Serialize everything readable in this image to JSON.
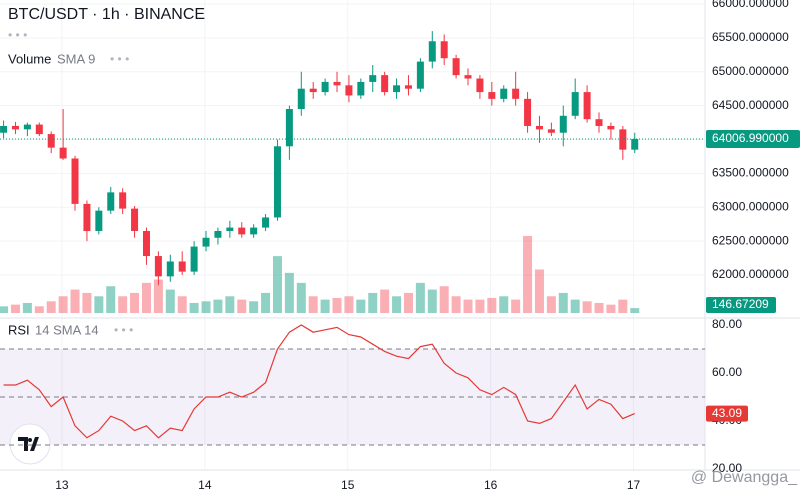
{
  "chart_data": {
    "type": "candlestick",
    "title": "BTC/USDT · 1h · BINANCE",
    "up_color": "#089981",
    "down_color": "#f23645",
    "xlim": [
      -0.3,
      58.9
    ],
    "xticks": [
      {
        "value": 4.9,
        "label": "13"
      },
      {
        "value": 16.9,
        "label": "14"
      },
      {
        "value": 28.9,
        "label": "15"
      },
      {
        "value": 40.9,
        "label": "16"
      },
      {
        "value": 52.9,
        "label": "17"
      }
    ],
    "ylim": [
      61410,
      66059
    ],
    "yticks": [
      {
        "value": 66000,
        "label": "66000.000000"
      },
      {
        "value": 65500,
        "label": "65500.000000"
      },
      {
        "value": 65000,
        "label": "65000.000000"
      },
      {
        "value": 64500,
        "label": "64500.000000"
      },
      {
        "value": 64000,
        "label": "64000.000000"
      },
      {
        "value": 63500,
        "label": "63500.000000"
      },
      {
        "value": 63000,
        "label": "63000.000000"
      },
      {
        "value": 62500,
        "label": "62500.000000"
      },
      {
        "value": 62000,
        "label": "62000.000000"
      }
    ],
    "grid": true,
    "last_price": {
      "value": 64006.99,
      "label": "64006.990000"
    },
    "ohlc": [
      [
        64100,
        64280,
        64020,
        64200
      ],
      [
        64200,
        64260,
        64080,
        64150
      ],
      [
        64150,
        64250,
        64050,
        64220
      ],
      [
        64220,
        64250,
        64050,
        64080
      ],
      [
        64080,
        64120,
        63800,
        63880
      ],
      [
        63880,
        64450,
        63700,
        63720
      ],
      [
        63720,
        63760,
        62950,
        63050
      ],
      [
        63050,
        63100,
        62500,
        62650
      ],
      [
        62650,
        63000,
        62600,
        62950
      ],
      [
        62950,
        63300,
        62900,
        63220
      ],
      [
        63220,
        63280,
        62900,
        62980
      ],
      [
        62980,
        63020,
        62550,
        62650
      ],
      [
        62650,
        62700,
        62150,
        62280
      ],
      [
        62280,
        62350,
        61850,
        61980
      ],
      [
        61980,
        62300,
        61900,
        62200
      ],
      [
        62200,
        62350,
        62000,
        62050
      ],
      [
        62050,
        62500,
        62000,
        62420
      ],
      [
        62420,
        62650,
        62350,
        62550
      ],
      [
        62550,
        62700,
        62450,
        62650
      ],
      [
        62650,
        62800,
        62550,
        62700
      ],
      [
        62700,
        62780,
        62550,
        62600
      ],
      [
        62600,
        62750,
        62550,
        62700
      ],
      [
        62700,
        62900,
        62650,
        62850
      ],
      [
        62850,
        64000,
        62800,
        63900
      ],
      [
        63900,
        64500,
        63700,
        64450
      ],
      [
        64450,
        65000,
        64350,
        64750
      ],
      [
        64750,
        64850,
        64600,
        64700
      ],
      [
        64700,
        64900,
        64650,
        64850
      ],
      [
        64850,
        65000,
        64700,
        64800
      ],
      [
        64800,
        64950,
        64550,
        64650
      ],
      [
        64650,
        64900,
        64600,
        64850
      ],
      [
        64850,
        65100,
        64700,
        64950
      ],
      [
        64950,
        65000,
        64650,
        64700
      ],
      [
        64700,
        64900,
        64600,
        64800
      ],
      [
        64800,
        64950,
        64650,
        64750
      ],
      [
        64750,
        65200,
        64700,
        65150
      ],
      [
        65150,
        65600,
        65050,
        65450
      ],
      [
        65450,
        65550,
        65100,
        65200
      ],
      [
        65200,
        65250,
        64900,
        64950
      ],
      [
        64950,
        65050,
        64800,
        64900
      ],
      [
        64900,
        64950,
        64600,
        64700
      ],
      [
        64700,
        64850,
        64500,
        64600
      ],
      [
        64600,
        64800,
        64550,
        64750
      ],
      [
        64750,
        65000,
        64500,
        64600
      ],
      [
        64600,
        64700,
        64100,
        64200
      ],
      [
        64200,
        64350,
        63950,
        64150
      ],
      [
        64150,
        64250,
        64050,
        64100
      ],
      [
        64100,
        64500,
        63900,
        64350
      ],
      [
        64350,
        64900,
        64300,
        64700
      ],
      [
        64700,
        64800,
        64250,
        64300
      ],
      [
        64300,
        64400,
        64100,
        64200
      ],
      [
        64200,
        64250,
        64000,
        64150
      ],
      [
        64150,
        64200,
        63700,
        63850
      ],
      [
        63850,
        64100,
        63800,
        64006.99
      ]
    ],
    "volume": {
      "label": "Volume",
      "params": "SMA 9",
      "ylim": [
        0,
        2600
      ],
      "values": [
        200,
        250,
        300,
        200,
        350,
        500,
        700,
        600,
        500,
        800,
        500,
        600,
        900,
        1000,
        700,
        500,
        300,
        350,
        400,
        500,
        400,
        350,
        600,
        1700,
        1200,
        900,
        500,
        400,
        450,
        500,
        400,
        600,
        700,
        500,
        600,
        900,
        700,
        800,
        500,
        400,
        400,
        450,
        500,
        400,
        2300,
        1300,
        500,
        600,
        400,
        350,
        300,
        250,
        400,
        146.67209
      ]
    },
    "rsi": {
      "label": "RSI",
      "params": "14 SMA 14",
      "color": "#e53935",
      "ylim": [
        20,
        80
      ],
      "yticks": [
        {
          "value": 80,
          "label": "80.00"
        },
        {
          "value": 60,
          "label": "60.00"
        },
        {
          "value": 40,
          "label": "40.00"
        },
        {
          "value": 20,
          "label": "20.00"
        }
      ],
      "band": [
        30,
        70
      ],
      "midline": 50,
      "values": [
        55,
        55,
        57,
        53,
        46,
        50,
        38,
        33,
        36,
        42,
        40,
        36,
        38,
        33,
        37,
        36,
        45,
        50,
        50,
        52,
        50,
        52,
        56,
        70,
        77,
        80,
        77,
        78,
        79,
        76,
        75,
        72,
        69,
        67,
        66,
        71,
        72,
        64,
        60,
        58,
        53,
        51,
        54,
        51,
        40,
        39,
        41,
        48,
        55,
        45,
        49,
        47,
        41,
        43.09
      ]
    },
    "watermark": "@ Dewangga_"
  }
}
